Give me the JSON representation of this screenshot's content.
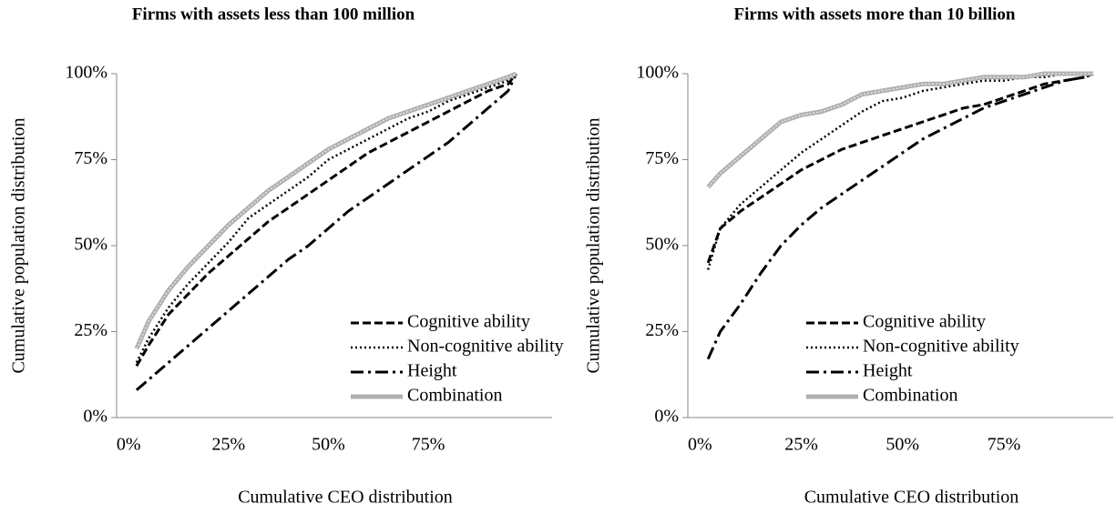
{
  "chart_data": [
    {
      "type": "line",
      "title": "Firms with assets less than 100 million",
      "x_label": "Cumulative CEO distribution",
      "y_label": "Cumulative population distribution",
      "x": [
        2,
        5,
        10,
        15,
        20,
        25,
        30,
        35,
        40,
        45,
        50,
        55,
        60,
        65,
        70,
        75,
        80,
        85,
        90,
        95,
        97
      ],
      "series": [
        {
          "name": "Cognitive ability",
          "color": "#000000",
          "style": "dashed",
          "values": [
            15,
            21,
            30,
            36,
            42,
            47,
            52,
            57,
            61,
            65,
            69,
            73,
            77,
            80,
            83,
            86,
            89,
            92,
            95,
            97,
            100
          ]
        },
        {
          "name": "Non-cognitive ability",
          "color": "#000000",
          "style": "dotted",
          "values": [
            16,
            23,
            32,
            39,
            45,
            51,
            58,
            62,
            66,
            70,
            75,
            78,
            81,
            84,
            87,
            89,
            92,
            94,
            96,
            98,
            100
          ]
        },
        {
          "name": "Height",
          "color": "#000000",
          "style": "dashdot",
          "values": [
            8,
            11,
            16,
            21,
            26,
            31,
            36,
            41,
            46,
            50,
            55,
            60,
            64,
            68,
            72,
            76,
            80,
            85,
            90,
            95,
            100
          ]
        },
        {
          "name": "Combination",
          "color": "#b0b0b0",
          "style": "band",
          "values": [
            20,
            28,
            37,
            44,
            50,
            56,
            61,
            66,
            70,
            74,
            78,
            81,
            84,
            87,
            89,
            91,
            93,
            95,
            97,
            99,
            100
          ]
        }
      ],
      "xlim": [
        -3,
        106
      ],
      "ylim": [
        0,
        100
      ],
      "xticks": [
        {
          "value": 0,
          "label": "0%"
        },
        {
          "value": 25,
          "label": "25%"
        },
        {
          "value": 50,
          "label": "50%"
        },
        {
          "value": 75,
          "label": "75%"
        }
      ],
      "yticks": [
        {
          "value": 0,
          "label": "0%"
        },
        {
          "value": 25,
          "label": "25%"
        },
        {
          "value": 50,
          "label": "50%"
        },
        {
          "value": 75,
          "label": "75%"
        },
        {
          "value": 100,
          "label": "100%"
        }
      ],
      "legend": "lower right"
    },
    {
      "type": "line",
      "title": "Firms with assets more than 10 billion",
      "x_label": "Cumulative CEO distribution",
      "y_label": "Cumulative population distribution",
      "x": [
        2,
        5,
        10,
        15,
        20,
        25,
        30,
        35,
        40,
        45,
        50,
        55,
        60,
        65,
        70,
        75,
        80,
        85,
        90,
        95,
        97
      ],
      "series": [
        {
          "name": "Cognitive ability",
          "color": "#000000",
          "style": "dashed",
          "values": [
            45,
            55,
            60,
            64,
            68,
            72,
            75,
            78,
            80,
            82,
            84,
            86,
            88,
            90,
            91,
            93,
            95,
            97,
            98,
            99,
            100
          ]
        },
        {
          "name": "Non-cognitive ability",
          "color": "#000000",
          "style": "dotted",
          "values": [
            43,
            55,
            62,
            67,
            72,
            77,
            81,
            85,
            89,
            92,
            93,
            95,
            96,
            97,
            98,
            98,
            99,
            99,
            100,
            100,
            100
          ]
        },
        {
          "name": "Height",
          "color": "#000000",
          "style": "dashdot",
          "values": [
            17,
            25,
            33,
            42,
            50,
            56,
            61,
            65,
            69,
            73,
            77,
            81,
            84,
            87,
            90,
            92,
            94,
            96,
            98,
            99,
            100
          ]
        },
        {
          "name": "Combination",
          "color": "#b0b0b0",
          "style": "band",
          "values": [
            67,
            71,
            76,
            81,
            86,
            88,
            89,
            91,
            94,
            95,
            96,
            97,
            97,
            98,
            99,
            99,
            99,
            100,
            100,
            100,
            100
          ]
        }
      ],
      "xlim": [
        -3,
        102
      ],
      "ylim": [
        0,
        100
      ],
      "xticks": [
        {
          "value": 0,
          "label": "0%"
        },
        {
          "value": 25,
          "label": "25%"
        },
        {
          "value": 50,
          "label": "50%"
        },
        {
          "value": 75,
          "label": "75%"
        }
      ],
      "yticks": [
        {
          "value": 0,
          "label": "0%"
        },
        {
          "value": 25,
          "label": "25%"
        },
        {
          "value": 50,
          "label": "50%"
        },
        {
          "value": 75,
          "label": "75%"
        },
        {
          "value": 100,
          "label": "100%"
        }
      ],
      "legend": "lower right"
    }
  ]
}
